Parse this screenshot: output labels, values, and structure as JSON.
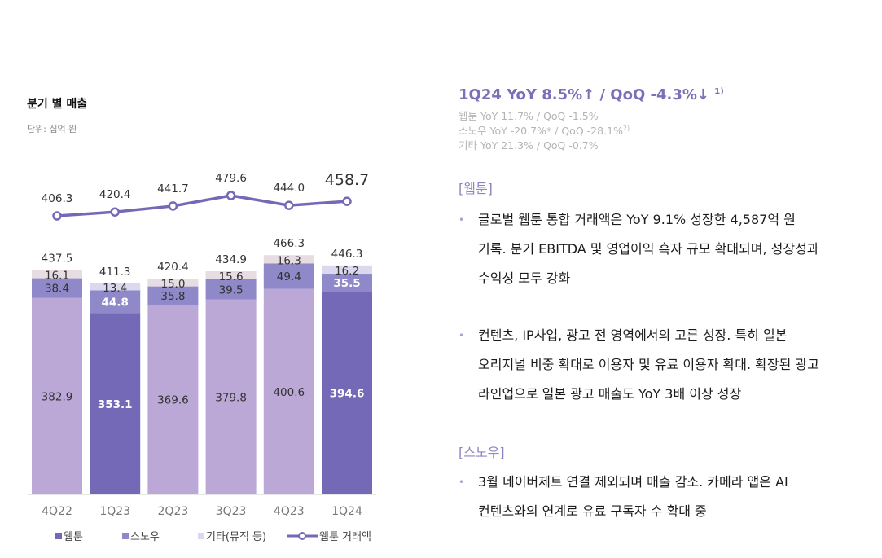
{
  "chart_data": {
    "type": "bar",
    "stacked": true,
    "title": "분기 별 매출",
    "unit": "단위: 십억 원",
    "categories": [
      "4Q22",
      "1Q23",
      "2Q23",
      "3Q23",
      "4Q23",
      "1Q24"
    ],
    "series": [
      {
        "name": "웹툰",
        "values": [
          382.9,
          353.1,
          369.6,
          379.8,
          400.6,
          394.6
        ]
      },
      {
        "name": "스노우",
        "values": [
          38.4,
          44.8,
          35.8,
          39.5,
          49.4,
          35.5
        ]
      },
      {
        "name": "기타(뮤직 등)",
        "values": [
          16.1,
          13.4,
          15.0,
          15.6,
          16.3,
          16.2
        ]
      }
    ],
    "totals": [
      437.5,
      411.3,
      420.4,
      434.9,
      466.3,
      446.3
    ],
    "line_series": {
      "name": "웹툰 거래액",
      "values": [
        406.3,
        420.4,
        441.7,
        479.6,
        444.0,
        458.7
      ]
    },
    "highlighted_categories": [
      "1Q23",
      "1Q24"
    ],
    "legend_position": "bottom",
    "grid": false,
    "colors": {
      "webtoon": "#bba8d6",
      "webtoon_highlight": "#7469b6",
      "snow": "#8f88c9",
      "other": "#e6dce2",
      "other_highlight": "#dcd8ef",
      "line": "#7469b6"
    }
  },
  "summary": {
    "headline": "1Q24 YoY 8.5%↑ / QoQ -4.3%↓",
    "headline_note": "1)",
    "lines": [
      {
        "text": "웹툰 YoY 11.7% / QoQ -1.5%",
        "note": ""
      },
      {
        "text": "스노우 YoY -20.7%* / QoQ -28.1%",
        "note": "2)"
      },
      {
        "text": "기타 YoY 21.3% / QoQ -0.7%",
        "note": ""
      }
    ]
  },
  "sections": [
    {
      "title": "[웹툰]",
      "bullets": [
        [
          "글로벌 웹툰 통합 거래액은 YoY 9.1% 성장한 4,587억 원",
          "기록. 분기 EBITDA 및 영업이익 흑자 규모 확대되며, 성장성과",
          "수익성 모두 강화"
        ],
        [
          "컨텐츠, IP사업, 광고 전 영역에서의 고른 성장. 특히 일본",
          "오리지널 비중 확대로 이용자 및 유료 이용자 확대. 확장된 광고",
          "라인업으로 일본 광고 매출도 YoY 3배 이상 성장"
        ]
      ]
    },
    {
      "title": "[스노우]",
      "bullets": [
        [
          "3월 네이버제트 연결 제외되며 매출 감소. 카메라 앱은 AI",
          "컨텐츠와의 연계로 유료 구독자 수 확대 중"
        ]
      ]
    }
  ]
}
